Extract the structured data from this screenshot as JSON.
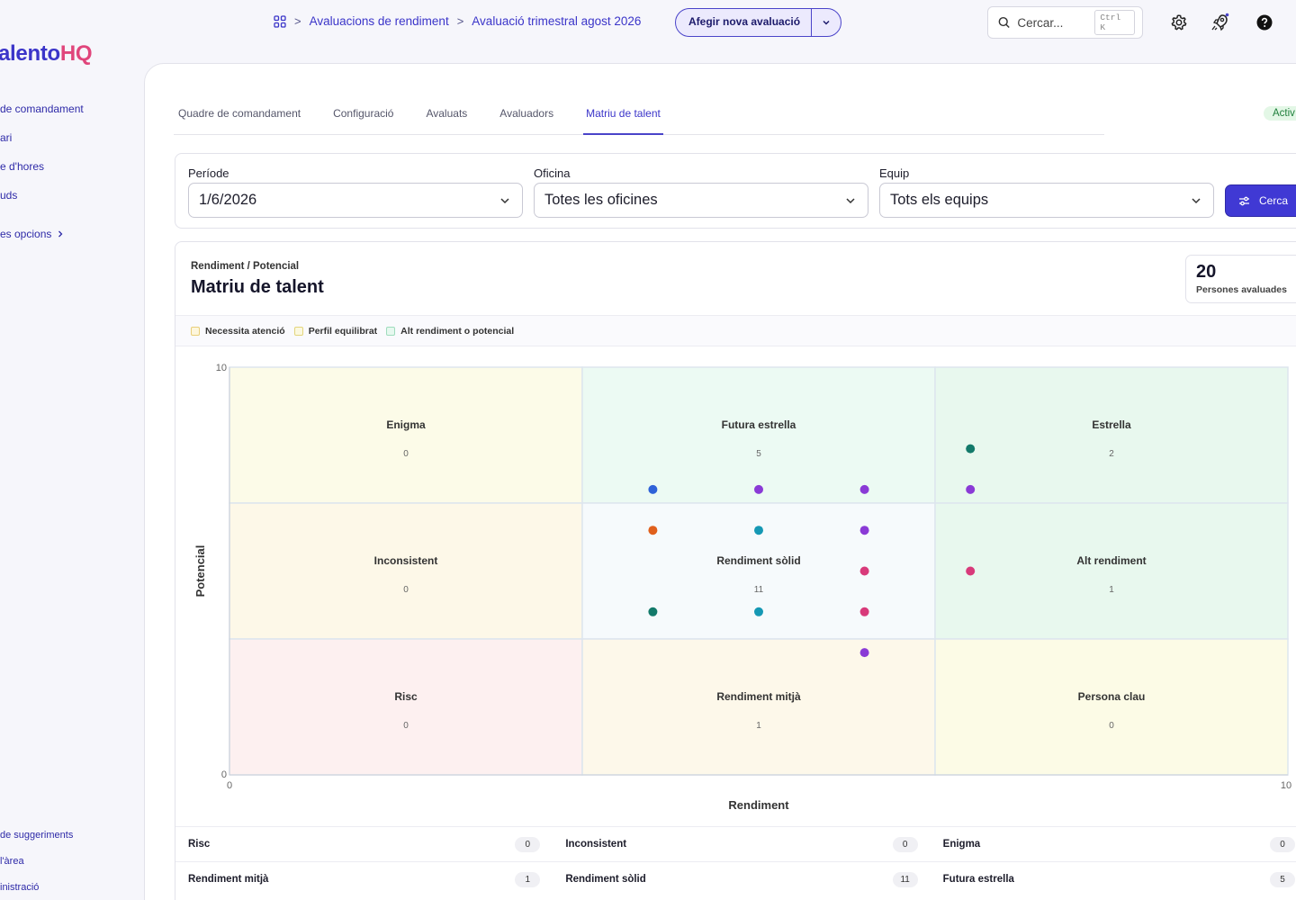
{
  "brand": {
    "part1": "alento",
    "part2": "HQ"
  },
  "sidebar": {
    "items": [
      {
        "label": "de comandament"
      },
      {
        "label": "ari"
      },
      {
        "label": "e d'hores"
      },
      {
        "label": "uds"
      }
    ],
    "more_label": "es opcions",
    "bottom": [
      {
        "label": "de suggeriments"
      },
      {
        "label": "l'àrea"
      },
      {
        "label": "inistració"
      }
    ]
  },
  "header": {
    "breadcrumbs": [
      "Avaluacions de rendiment",
      "Avaluació trimestral agost 2026"
    ],
    "add_button": "Afegir nova avaluació",
    "search": {
      "placeholder": "Cercar...",
      "shortcut": "Ctrl K"
    }
  },
  "tabs": [
    {
      "label": "Quadre de comandament",
      "active": false
    },
    {
      "label": "Configuració",
      "active": false
    },
    {
      "label": "Avaluats",
      "active": false
    },
    {
      "label": "Avaluadors",
      "active": false
    },
    {
      "label": "Matriu de talent",
      "active": true
    }
  ],
  "status": "Activ",
  "filters": {
    "period": {
      "label": "Període",
      "value": "1/6/2026"
    },
    "office": {
      "label": "Oficina",
      "value": "Totes les oficines"
    },
    "team": {
      "label": "Equip",
      "value": "Tots els equips"
    },
    "search_button": "Cerca"
  },
  "matrix": {
    "subtitle": "Rendiment / Potencial",
    "title": "Matriu de talent",
    "count": "20",
    "count_label": "Persones avaluades",
    "legend": [
      {
        "label": "Necessita atenció",
        "fill": "#fdf6dc",
        "stroke": "#e9cf7a"
      },
      {
        "label": "Perfil equilibrat",
        "fill": "#fbf8df",
        "stroke": "#e3d57d"
      },
      {
        "label": "Alt rendiment o potencial",
        "fill": "#e6f8ef",
        "stroke": "#9fdcbd"
      }
    ]
  },
  "chart_data": {
    "type": "scatter",
    "xlabel": "Rendiment",
    "ylabel": "Potencial",
    "xlim": [
      0,
      10
    ],
    "ylim": [
      0,
      10
    ],
    "x_ticks": [
      "0",
      "10"
    ],
    "y_ticks": [
      "0",
      "10"
    ],
    "cells": [
      {
        "name": "Enigma",
        "count": "0",
        "col": 0,
        "row": 2,
        "fill": "#fcfbe8"
      },
      {
        "name": "Futura estrella",
        "count": "5",
        "col": 1,
        "row": 2,
        "fill": "#ecfaf3"
      },
      {
        "name": "Estrella",
        "count": "2",
        "col": 2,
        "row": 2,
        "fill": "#e8f8ee"
      },
      {
        "name": "Inconsistent",
        "count": "0",
        "col": 0,
        "row": 1,
        "fill": "#fdf8e8"
      },
      {
        "name": "Rendiment sòlid",
        "count": "11",
        "col": 1,
        "row": 1,
        "fill": "#f6fafc"
      },
      {
        "name": "Alt rendiment",
        "count": "1",
        "col": 2,
        "row": 1,
        "fill": "#e8f8ee"
      },
      {
        "name": "Risc",
        "count": "0",
        "col": 0,
        "row": 0,
        "fill": "#fdf0f0"
      },
      {
        "name": "Rendiment mitjà",
        "count": "1",
        "col": 1,
        "row": 0,
        "fill": "#fdf8ea"
      },
      {
        "name": "Persona clau",
        "count": "0",
        "col": 2,
        "row": 0,
        "fill": "#fcfbe6"
      }
    ],
    "points": [
      {
        "x": 4.0,
        "y": 7.0,
        "color": "#2f62d8"
      },
      {
        "x": 5.0,
        "y": 7.0,
        "color": "#8a3ad6"
      },
      {
        "x": 6.0,
        "y": 7.0,
        "color": "#8a3ad6"
      },
      {
        "x": 7.0,
        "y": 8.0,
        "color": "#137a6a"
      },
      {
        "x": 7.0,
        "y": 7.0,
        "color": "#8a3ad6"
      },
      {
        "x": 4.0,
        "y": 6.0,
        "color": "#e0601c"
      },
      {
        "x": 5.0,
        "y": 6.0,
        "color": "#1598b4"
      },
      {
        "x": 6.0,
        "y": 6.0,
        "color": "#8a3ad6"
      },
      {
        "x": 6.0,
        "y": 5.0,
        "color": "#d83a7a"
      },
      {
        "x": 7.0,
        "y": 5.0,
        "color": "#d83a7a"
      },
      {
        "x": 4.0,
        "y": 4.0,
        "color": "#137a6a"
      },
      {
        "x": 5.0,
        "y": 4.0,
        "color": "#1598b4"
      },
      {
        "x": 6.0,
        "y": 4.0,
        "color": "#d83a7a"
      },
      {
        "x": 6.0,
        "y": 3.0,
        "color": "#8a3ad6"
      }
    ]
  },
  "summary": [
    [
      {
        "label": "Risc",
        "count": "0"
      },
      {
        "label": "Inconsistent",
        "count": "0"
      },
      {
        "label": "Enigma",
        "count": "0"
      }
    ],
    [
      {
        "label": "Rendiment mitjà",
        "count": "1"
      },
      {
        "label": "Rendiment sòlid",
        "count": "11"
      },
      {
        "label": "Futura estrella",
        "count": "5"
      }
    ]
  ]
}
